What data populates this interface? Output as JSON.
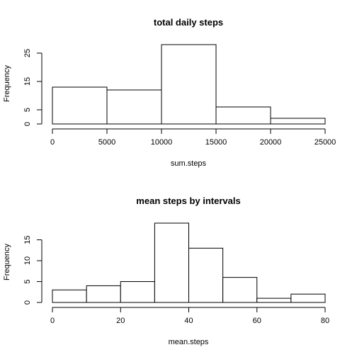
{
  "chart_data": [
    {
      "type": "bar",
      "title": "total daily steps",
      "xlabel": "sum.steps",
      "ylabel": "Frequency",
      "bin_edges": [
        0,
        5000,
        10000,
        15000,
        20000,
        25000
      ],
      "values": [
        13,
        12,
        28,
        6,
        2
      ],
      "xticks": [
        0,
        5000,
        10000,
        15000,
        20000,
        25000
      ],
      "yticks": [
        0,
        5,
        15,
        25
      ],
      "xlim": [
        0,
        25000
      ],
      "ylim": [
        0,
        28
      ],
      "grid": false
    },
    {
      "type": "bar",
      "title": "mean steps by intervals",
      "xlabel": "mean.steps",
      "ylabel": "Frequency",
      "bin_edges": [
        0,
        10,
        20,
        30,
        40,
        50,
        60,
        70,
        80
      ],
      "values": [
        3,
        4,
        5,
        19,
        13,
        6,
        1,
        2
      ],
      "xticks": [
        0,
        20,
        40,
        60,
        80
      ],
      "yticks": [
        0,
        5,
        10,
        15
      ],
      "xlim": [
        0,
        80
      ],
      "ylim": [
        0,
        19
      ],
      "grid": false
    }
  ]
}
